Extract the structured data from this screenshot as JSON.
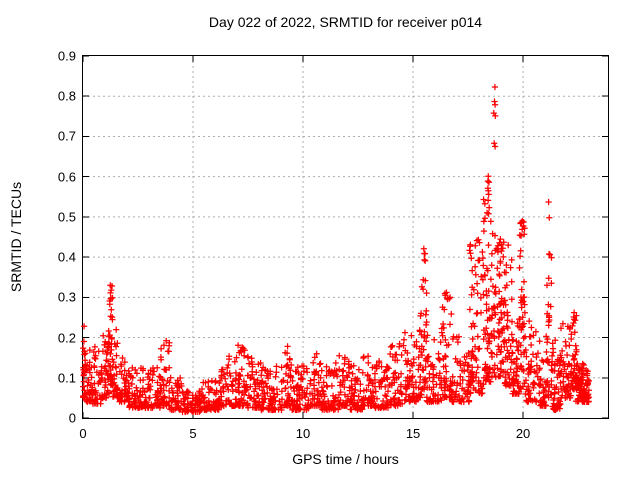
{
  "chart_data": {
    "type": "scatter",
    "title": "Day 022 of 2022, SRMTID for receiver p014",
    "xlabel": "GPS time / hours",
    "ylabel": "SRMTID / TECUs",
    "xlim": [
      0,
      23.86
    ],
    "ylim": [
      0,
      0.9
    ],
    "xticks": [
      0,
      5,
      10,
      15,
      20
    ],
    "xtick_labels": [
      "0",
      "5",
      "10",
      "15",
      "20"
    ],
    "yticks": [
      0,
      0.1,
      0.2,
      0.3,
      0.4,
      0.5,
      0.6,
      0.7,
      0.8,
      0.9
    ],
    "ytick_labels": [
      "0",
      "0.1",
      "0.2",
      "0.3",
      "0.4",
      "0.5",
      "0.6",
      "0.7",
      "0.8",
      "0.9"
    ],
    "grid": "dotted",
    "grid_color": "#adadad",
    "marker": "plus",
    "marker_color": "#ff0000",
    "axis_color": "#000000",
    "legend": "none",
    "series_description": "SRMTID vs GPS time; dense low band 0.02-0.15 from 0-14h, activity spikes at 1.2h (0.33), 15.5h (0.42), 16.5h (0.31), 17.6-19.5h (0.4-0.83 max at 18.7h), 19.9h (0.49), 21.2h (0.54), 22.3h (0.26); data ends ~23h",
    "density_segments": [
      [
        0.0,
        0.15,
        25,
        0.05,
        0.205,
        1.5
      ],
      [
        0.15,
        0.45,
        35,
        0.04,
        0.175,
        2.0
      ],
      [
        0.45,
        0.9,
        40,
        0.035,
        0.185,
        2.2
      ],
      [
        0.9,
        1.1,
        22,
        0.05,
        0.21,
        2.0
      ],
      [
        1.1,
        1.2,
        18,
        0.06,
        0.23,
        1.8
      ],
      [
        1.2,
        1.35,
        30,
        0.08,
        0.335,
        1.3
      ],
      [
        1.35,
        1.6,
        30,
        0.05,
        0.225,
        1.9
      ],
      [
        1.6,
        2.1,
        42,
        0.04,
        0.155,
        2.0
      ],
      [
        2.1,
        3.5,
        112,
        0.025,
        0.125,
        2.0
      ],
      [
        3.5,
        3.95,
        45,
        0.03,
        0.19,
        2.2
      ],
      [
        3.95,
        4.5,
        42,
        0.02,
        0.1,
        2.0
      ],
      [
        4.5,
        5.4,
        75,
        0.015,
        0.068,
        1.8
      ],
      [
        5.4,
        6.2,
        65,
        0.02,
        0.095,
        2.0
      ],
      [
        6.2,
        6.6,
        30,
        0.03,
        0.13,
        2.0
      ],
      [
        6.6,
        7.0,
        32,
        0.03,
        0.155,
        2.0
      ],
      [
        7.0,
        7.45,
        40,
        0.03,
        0.185,
        2.2
      ],
      [
        7.45,
        8.1,
        55,
        0.025,
        0.155,
        2.2
      ],
      [
        8.1,
        9.1,
        82,
        0.02,
        0.135,
        2.2
      ],
      [
        9.1,
        9.5,
        35,
        0.03,
        0.175,
        2.2
      ],
      [
        9.5,
        10.3,
        65,
        0.02,
        0.13,
        2.2
      ],
      [
        10.3,
        10.75,
        38,
        0.03,
        0.165,
        2.2
      ],
      [
        10.75,
        11.6,
        70,
        0.02,
        0.14,
        2.2
      ],
      [
        11.6,
        12.1,
        42,
        0.03,
        0.155,
        2.2
      ],
      [
        12.1,
        12.7,
        50,
        0.02,
        0.13,
        2.2
      ],
      [
        12.7,
        13.2,
        42,
        0.03,
        0.165,
        2.2
      ],
      [
        13.2,
        13.95,
        62,
        0.025,
        0.145,
        2.2
      ],
      [
        13.95,
        14.55,
        52,
        0.03,
        0.185,
        2.2
      ],
      [
        14.55,
        15.15,
        55,
        0.04,
        0.225,
        2.2
      ],
      [
        15.15,
        15.4,
        26,
        0.05,
        0.27,
        2.0
      ],
      [
        15.4,
        15.62,
        32,
        0.07,
        0.425,
        1.6
      ],
      [
        15.62,
        16.3,
        56,
        0.04,
        0.21,
        2.2
      ],
      [
        16.3,
        16.75,
        46,
        0.05,
        0.315,
        2.0
      ],
      [
        16.75,
        17.55,
        66,
        0.04,
        0.21,
        2.2
      ],
      [
        17.55,
        18.2,
        76,
        0.06,
        0.445,
        1.7
      ],
      [
        18.2,
        18.55,
        56,
        0.09,
        0.615,
        1.7
      ],
      [
        18.55,
        19.05,
        76,
        0.1,
        0.475,
        1.4
      ],
      [
        19.05,
        19.5,
        60,
        0.08,
        0.45,
        1.8
      ],
      [
        19.5,
        19.82,
        40,
        0.06,
        0.26,
        2.0
      ],
      [
        19.82,
        20.1,
        48,
        0.07,
        0.49,
        1.5
      ],
      [
        20.1,
        20.65,
        46,
        0.04,
        0.245,
        2.2
      ],
      [
        20.65,
        21.08,
        42,
        0.03,
        0.205,
        2.2
      ],
      [
        21.08,
        21.32,
        34,
        0.05,
        0.41,
        1.6
      ],
      [
        21.32,
        21.7,
        46,
        0.02,
        0.195,
        2.0
      ],
      [
        21.7,
        22.2,
        56,
        0.05,
        0.235,
        2.2
      ],
      [
        22.2,
        22.45,
        36,
        0.07,
        0.265,
        1.8
      ],
      [
        22.4,
        23.0,
        96,
        0.04,
        0.135,
        1.8
      ]
    ],
    "outlier_points": [
      [
        0.05,
        0.228
      ],
      [
        1.24,
        0.33
      ],
      [
        1.28,
        0.318
      ],
      [
        1.26,
        0.296
      ],
      [
        1.22,
        0.283
      ],
      [
        3.78,
        0.192
      ],
      [
        9.3,
        0.178
      ],
      [
        15.49,
        0.421
      ],
      [
        15.51,
        0.409
      ],
      [
        16.52,
        0.312
      ],
      [
        16.55,
        0.298
      ],
      [
        17.9,
        0.441
      ],
      [
        18.02,
        0.436
      ],
      [
        18.42,
        0.601
      ],
      [
        18.45,
        0.586
      ],
      [
        18.4,
        0.571
      ],
      [
        18.44,
        0.556
      ],
      [
        18.41,
        0.541
      ],
      [
        18.46,
        0.523
      ],
      [
        18.43,
        0.508
      ],
      [
        18.72,
        0.823
      ],
      [
        18.7,
        0.787
      ],
      [
        18.73,
        0.779
      ],
      [
        18.67,
        0.758
      ],
      [
        18.74,
        0.751
      ],
      [
        18.69,
        0.683
      ],
      [
        18.73,
        0.675
      ],
      [
        19.12,
        0.437
      ],
      [
        19.08,
        0.422
      ],
      [
        19.93,
        0.486
      ],
      [
        19.96,
        0.469
      ],
      [
        19.91,
        0.453
      ],
      [
        20.28,
        0.241
      ],
      [
        21.16,
        0.537
      ],
      [
        21.19,
        0.498
      ],
      [
        22.32,
        0.262
      ],
      [
        22.3,
        0.251
      ]
    ]
  }
}
